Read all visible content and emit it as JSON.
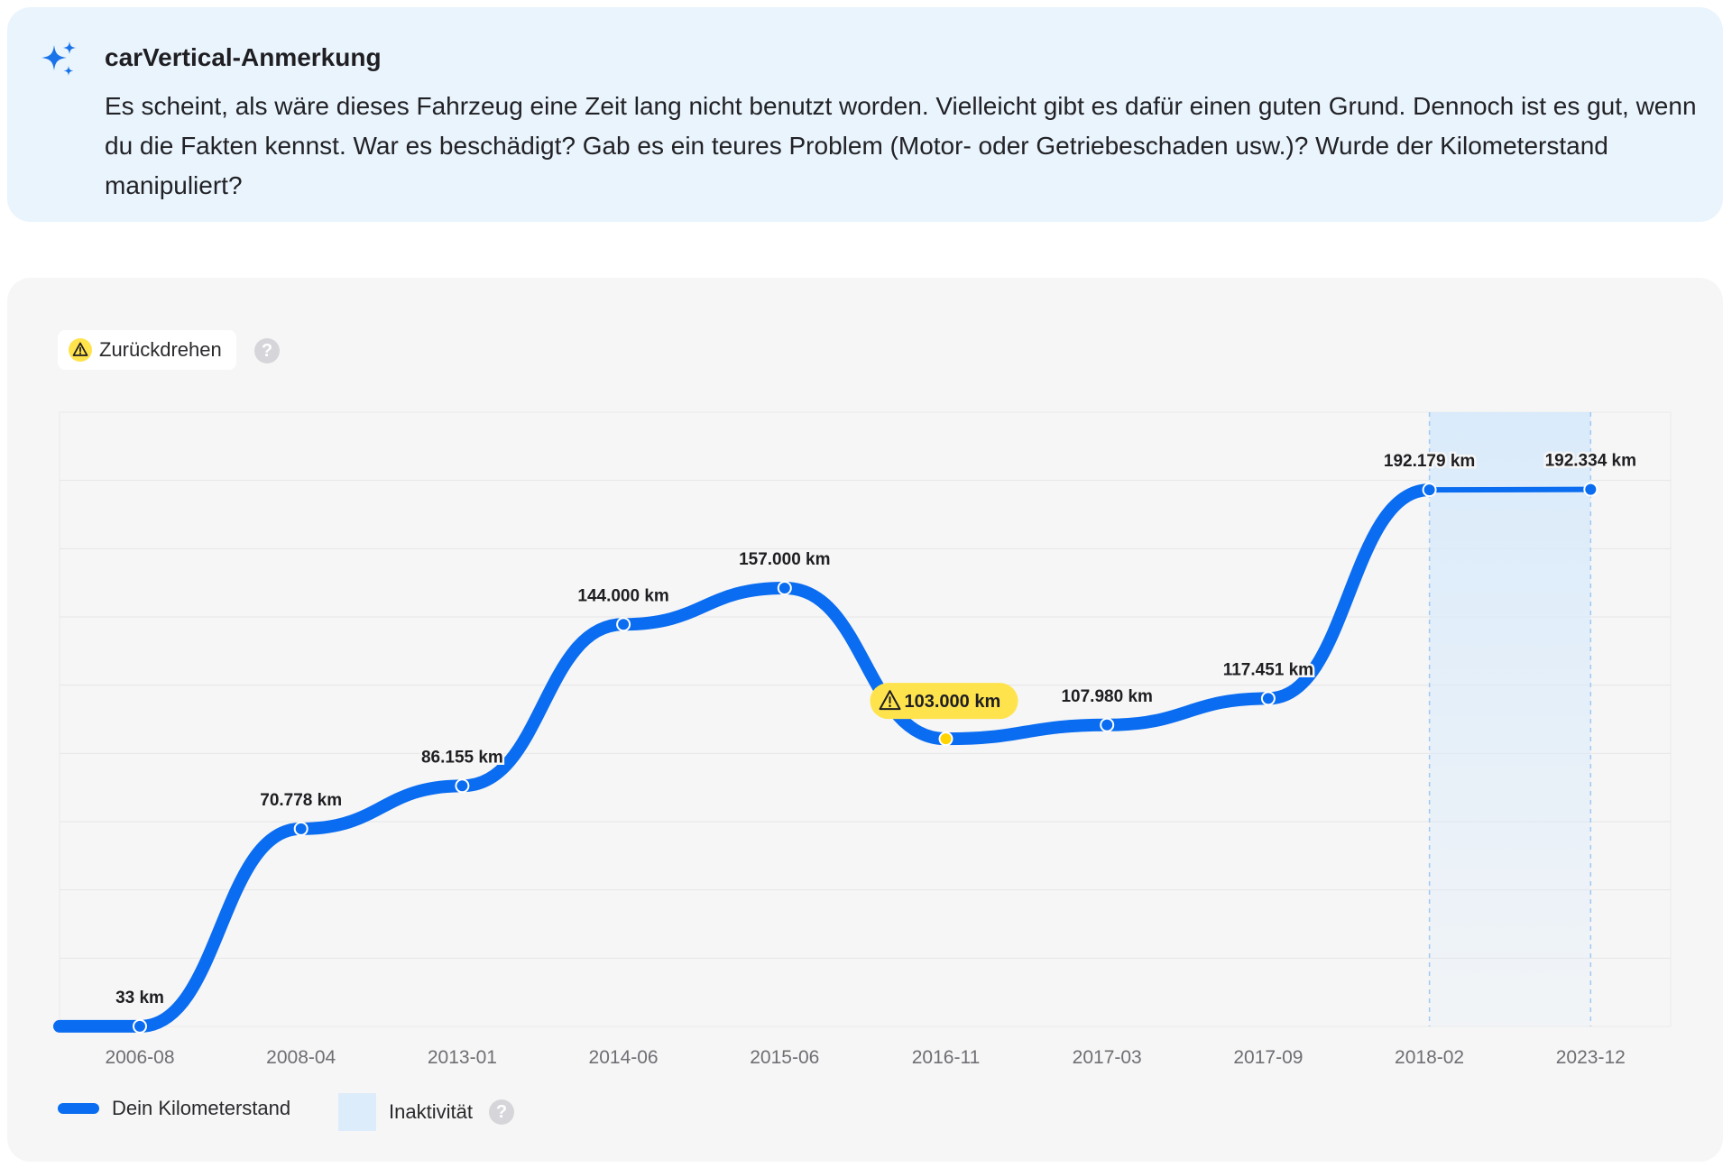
{
  "note": {
    "icon": "sparkles-icon",
    "title": "carVertical-Anmerkung",
    "text": "Es scheint, als wäre dieses Fahrzeug eine Zeit lang nicht benutzt worden. Vielleicht gibt es dafür einen guten Grund. Dennoch ist es gut, wenn du die Fakten kennst. War es beschädigt? Gab es ein teures Problem (Motor- oder Getriebeschaden usw.)? Wurde der Kilometerstand manipuliert?"
  },
  "filter": {
    "label": "Zurückdrehen",
    "icon": "warning-icon",
    "help": "?"
  },
  "legend": {
    "mileage_label": "Dein Kilometerstand",
    "inactivity_label": "Inaktivität",
    "help": "?"
  },
  "colors": {
    "accent": "#0a6cf0",
    "warning": "#ffe34d",
    "inactivity": "#dcecfb",
    "note_bg": "#e9f4fd"
  },
  "chart_data": {
    "type": "line",
    "title": "",
    "xlabel": "",
    "ylabel": "",
    "ylim": [
      0,
      220000
    ],
    "grid": true,
    "categories": [
      "2006-08",
      "2008-04",
      "2013-01",
      "2014-06",
      "2015-06",
      "2016-11",
      "2017-03",
      "2017-09",
      "2018-02",
      "2023-12"
    ],
    "series": [
      {
        "name": "Dein Kilometerstand",
        "values": [
          33,
          70778,
          86155,
          144000,
          157000,
          103000,
          107980,
          117451,
          192179,
          192334
        ],
        "labels": [
          "33 km",
          "70.778 km",
          "86.155 km",
          "144.000 km",
          "157.000 km",
          "103.000 km",
          "107.980 km",
          "117.451 km",
          "192.179 km",
          "192.334 km"
        ]
      }
    ],
    "rollback_points": [
      "2016-11"
    ],
    "inactivity_range": [
      "2018-02",
      "2023-12"
    ]
  }
}
